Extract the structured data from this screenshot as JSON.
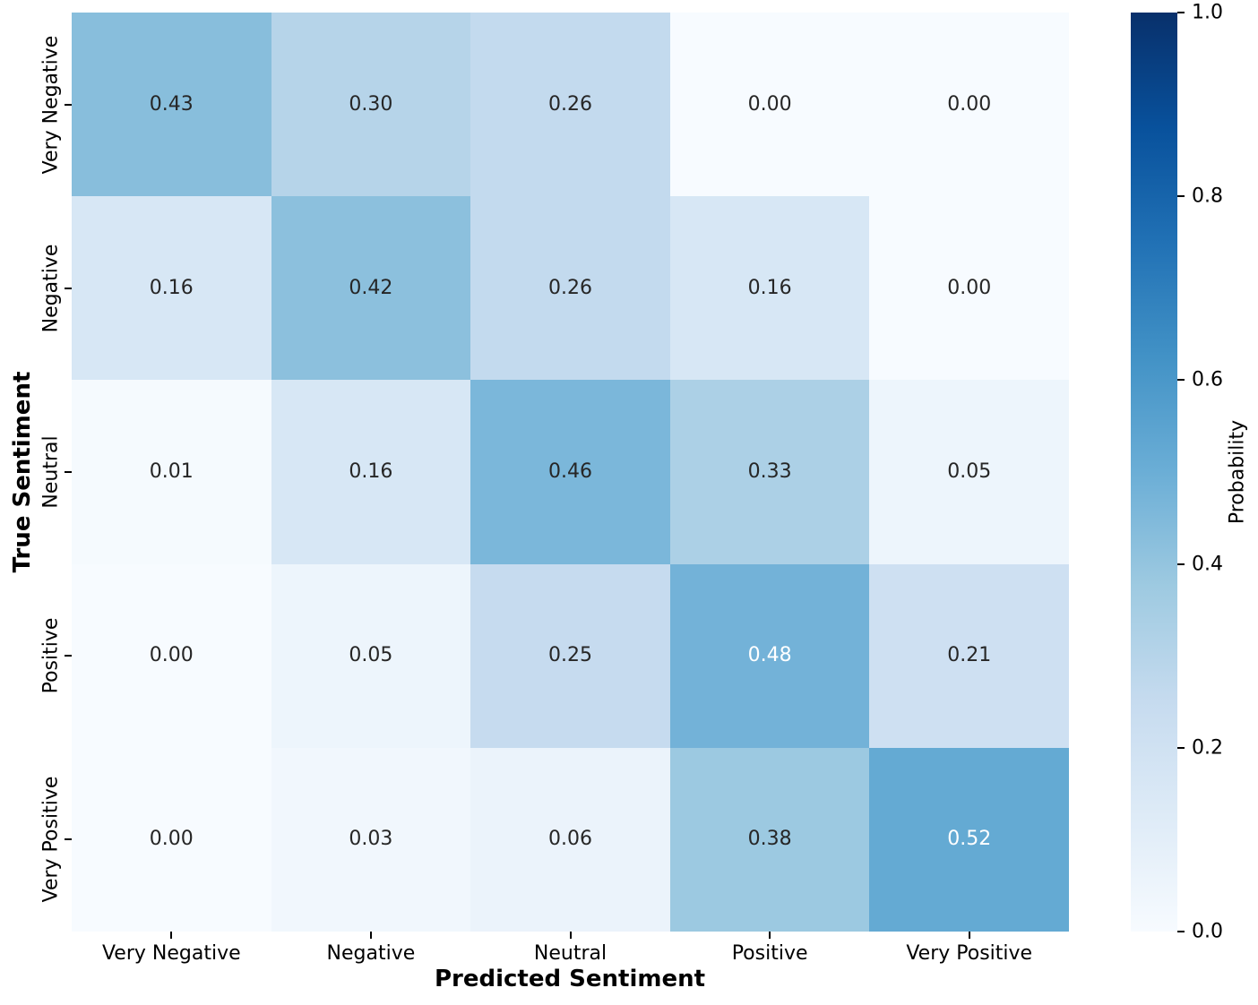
{
  "chart_data": {
    "type": "heatmap",
    "title": "",
    "xlabel": "Predicted Sentiment",
    "ylabel": "True Sentiment",
    "x_categories": [
      "Very Negative",
      "Negative",
      "Neutral",
      "Positive",
      "Very Positive"
    ],
    "y_categories": [
      "Very Negative",
      "Negative",
      "Neutral",
      "Positive",
      "Very Positive"
    ],
    "matrix": [
      [
        0.43,
        0.3,
        0.26,
        0.0,
        0.0
      ],
      [
        0.16,
        0.42,
        0.26,
        0.16,
        0.0
      ],
      [
        0.01,
        0.16,
        0.46,
        0.33,
        0.05
      ],
      [
        0.0,
        0.05,
        0.25,
        0.48,
        0.21
      ],
      [
        0.0,
        0.03,
        0.06,
        0.38,
        0.52
      ]
    ],
    "value_decimals": 2,
    "vmin": 0.0,
    "vmax": 1.0,
    "colormap": "Blues",
    "colormap_stops": [
      "#f7fbff",
      "#deebf7",
      "#c6dbef",
      "#9ecae1",
      "#6baed6",
      "#4292c6",
      "#2171b5",
      "#08519c",
      "#08306b"
    ],
    "grid": false,
    "colorbar": {
      "label": "Probability",
      "ticks": [
        0.0,
        0.2,
        0.4,
        0.6,
        0.8,
        1.0
      ],
      "tick_decimals": 1,
      "position": "right"
    },
    "annotation_text_colors": {
      "light": "#ffffff",
      "dark": "#262626"
    },
    "axis_tick_color": "#000000",
    "background_color": "#ffffff"
  }
}
